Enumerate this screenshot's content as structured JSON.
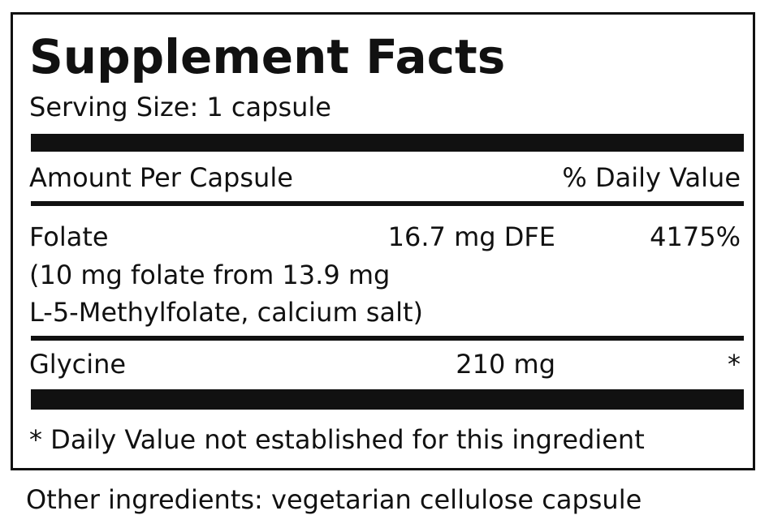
{
  "title": "Supplement Facts",
  "serving_size": "Serving Size: 1 capsule",
  "header": {
    "amount": "Amount Per Capsule",
    "dv": "% Daily Value"
  },
  "rows": [
    {
      "name": "Folate",
      "amount": "16.7 mg DFE",
      "dv": "4175%",
      "note1": "(10 mg folate from 13.9 mg",
      "note2": "L-5-Methylfolate, calcium salt)"
    },
    {
      "name": "Glycine",
      "amount": "210 mg",
      "dv": "*"
    }
  ],
  "footnote": "* Daily Value not established for this ingredient",
  "other_ingredients": "Other ingredients: vegetarian cellulose capsule"
}
